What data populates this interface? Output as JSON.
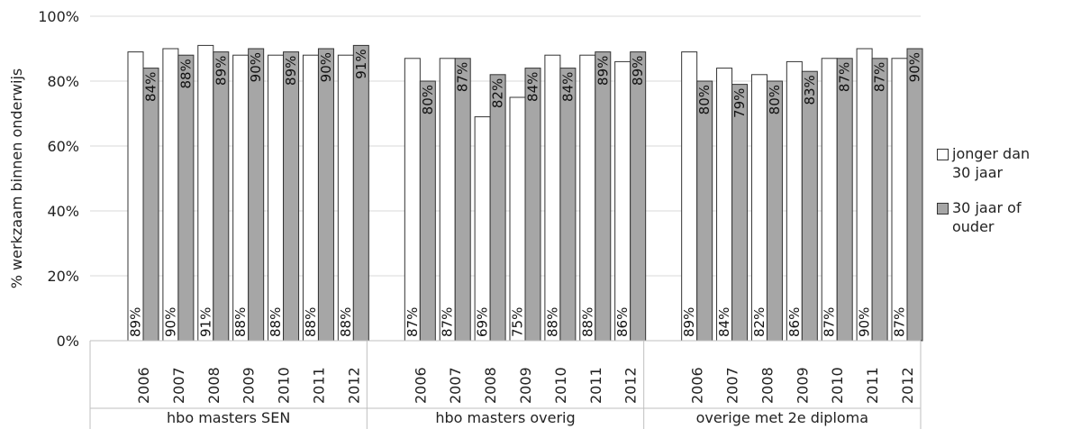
{
  "chart_data": {
    "type": "bar",
    "ylabel": "% werkzaam binnen onderwijs",
    "xlabel": "",
    "ylim": [
      0,
      100
    ],
    "yticks": [
      "0%",
      "20%",
      "40%",
      "60%",
      "80%",
      "100%"
    ],
    "grid": true,
    "legend_position": "right",
    "groups": [
      {
        "label": "hbo masters SEN",
        "categories": [
          "2006",
          "2007",
          "2008",
          "2009",
          "2010",
          "2011",
          "2012"
        ],
        "series": [
          {
            "name": "jonger dan 30 jaar",
            "values": [
              89,
              90,
              91,
              88,
              88,
              88,
              88
            ],
            "labels": [
              "89%",
              "90%",
              "91%",
              "88%",
              "88%",
              "88%",
              "88%"
            ]
          },
          {
            "name": "30 jaar of ouder",
            "values": [
              84,
              88,
              89,
              90,
              89,
              90,
              91
            ],
            "labels": [
              "84%",
              "88%",
              "89%",
              "90%",
              "89%",
              "90%",
              "91%"
            ]
          }
        ]
      },
      {
        "label": "hbo masters overig",
        "categories": [
          "2006",
          "2007",
          "2008",
          "2009",
          "2010",
          "2011",
          "2012"
        ],
        "series": [
          {
            "name": "jonger dan 30 jaar",
            "values": [
              87,
              87,
              69,
              75,
              88,
              88,
              86
            ],
            "labels": [
              "87%",
              "87%",
              "69%",
              "75%",
              "88%",
              "88%",
              "86%"
            ]
          },
          {
            "name": "30 jaar of ouder",
            "values": [
              80,
              87,
              82,
              84,
              84,
              89,
              89
            ],
            "labels": [
              "80%",
              "87%",
              "82%",
              "84%",
              "84%",
              "89%",
              "89%"
            ]
          }
        ]
      },
      {
        "label": "overige met 2e diploma",
        "categories": [
          "2006",
          "2007",
          "2008",
          "2009",
          "2010",
          "2011",
          "2012"
        ],
        "series": [
          {
            "name": "jonger dan 30 jaar",
            "values": [
              89,
              84,
              82,
              86,
              87,
              90,
              87
            ],
            "labels": [
              "89%",
              "84%",
              "82%",
              "86%",
              "87%",
              "90%",
              "87%"
            ]
          },
          {
            "name": "30 jaar of ouder",
            "values": [
              80,
              79,
              80,
              83,
              87,
              87,
              90
            ],
            "labels": [
              "80%",
              "79%",
              "80%",
              "83%",
              "87%",
              "87%",
              "90%"
            ]
          }
        ]
      }
    ],
    "legend": [
      {
        "label_line1": "jonger dan",
        "label_line2": "30 jaar",
        "color": "#ffffff"
      },
      {
        "label_line1": "30 jaar of",
        "label_line2": "ouder",
        "color": "#a6a6a6"
      }
    ]
  }
}
